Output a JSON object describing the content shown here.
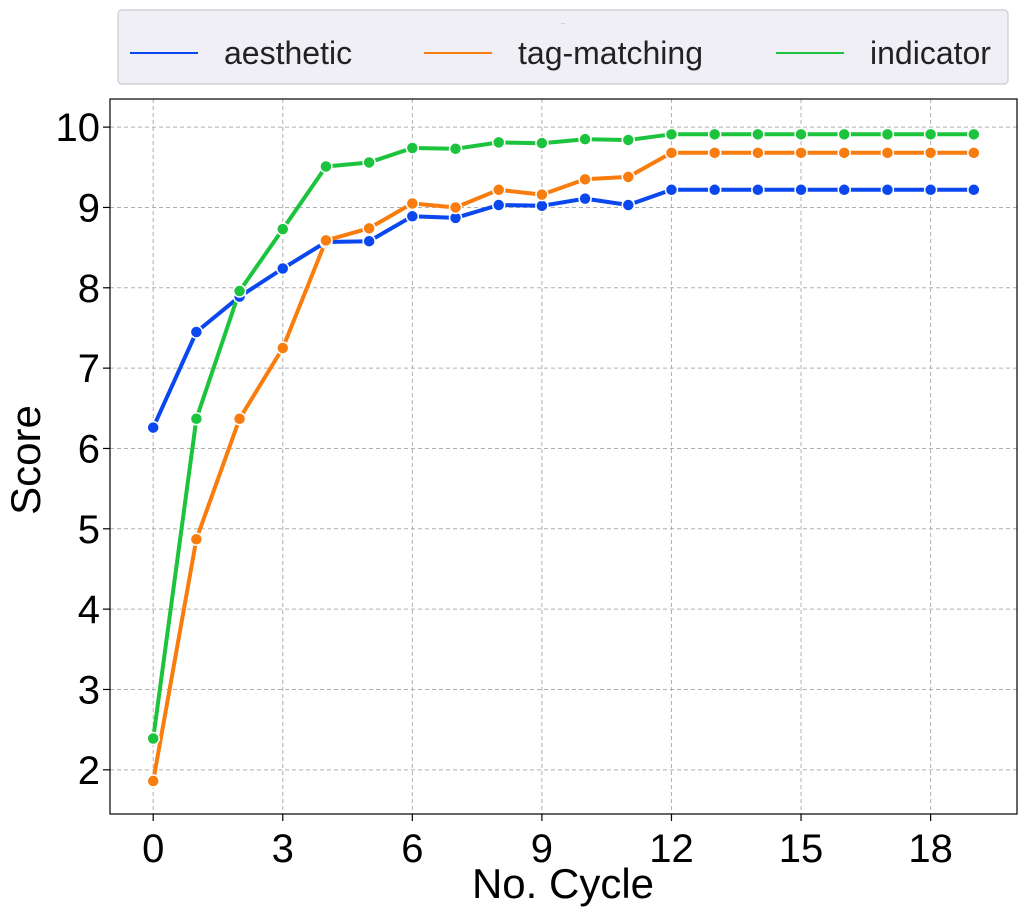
{
  "chart_data": {
    "type": "line",
    "title": "",
    "xlabel": "No. Cycle",
    "ylabel": "Score",
    "xlim": [
      -1,
      20
    ],
    "ylim": [
      1.45,
      10.35
    ],
    "xticks": [
      0,
      3,
      6,
      9,
      12,
      15,
      18
    ],
    "yticks": [
      2,
      3,
      4,
      5,
      6,
      7,
      8,
      9,
      10
    ],
    "grid": true,
    "legend_position": "top-center",
    "legend_title": "---",
    "x": [
      0,
      1,
      2,
      3,
      4,
      5,
      6,
      7,
      8,
      9,
      10,
      11,
      12,
      13,
      14,
      15,
      16,
      17,
      18,
      19
    ],
    "series": [
      {
        "name": "aesthetic",
        "color": "#0a47ef",
        "values": [
          6.26,
          7.45,
          7.89,
          8.24,
          8.57,
          8.58,
          8.89,
          8.87,
          9.03,
          9.02,
          9.11,
          9.03,
          9.22,
          9.22,
          9.22,
          9.22,
          9.22,
          9.22,
          9.22,
          9.22
        ]
      },
      {
        "name": "tag-matching",
        "color": "#f97c0e",
        "values": [
          1.86,
          4.87,
          6.37,
          7.25,
          8.59,
          8.74,
          9.05,
          9.0,
          9.22,
          9.16,
          9.35,
          9.38,
          9.68,
          9.68,
          9.68,
          9.68,
          9.68,
          9.68,
          9.68,
          9.68
        ]
      },
      {
        "name": "indicator",
        "color": "#1cc33c",
        "values": [
          2.39,
          6.37,
          7.96,
          8.73,
          9.51,
          9.56,
          9.74,
          9.73,
          9.81,
          9.8,
          9.85,
          9.84,
          9.91,
          9.91,
          9.91,
          9.91,
          9.91,
          9.91,
          9.91,
          9.91
        ]
      }
    ]
  }
}
